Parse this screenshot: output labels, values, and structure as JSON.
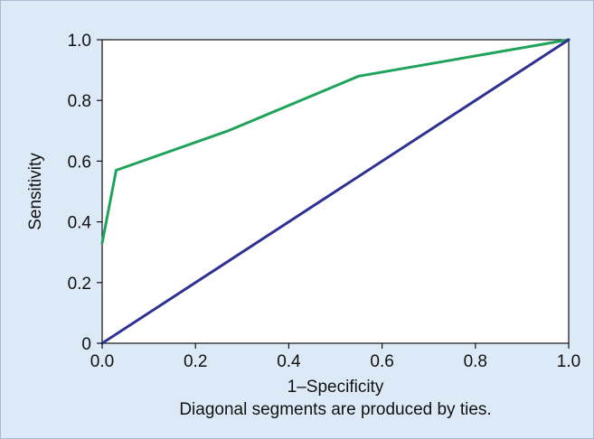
{
  "chart_data": {
    "type": "line",
    "title": "",
    "xlabel": "1–Specificity",
    "ylabel": "Sensitivity",
    "xlim": [
      0,
      1
    ],
    "ylim": [
      0,
      1
    ],
    "x_ticks": [
      "0.0",
      "0.2",
      "0.4",
      "0.6",
      "0.8",
      "1.0"
    ],
    "y_ticks": [
      "0",
      "0.2",
      "0.4",
      "0.6",
      "0.8",
      "1.0"
    ],
    "grid": false,
    "legend": "none",
    "annotation": "Diagonal segments are produced by ties.",
    "series": [
      {
        "color": "#1fa35a",
        "points": [
          [
            0.0,
            0.33
          ],
          [
            0.03,
            0.57
          ],
          [
            0.27,
            0.7
          ],
          [
            0.55,
            0.88
          ],
          [
            1.0,
            1.0
          ]
        ]
      },
      {
        "color": "#2e3192",
        "points": [
          [
            0.0,
            0.0
          ],
          [
            1.0,
            1.0
          ]
        ]
      }
    ]
  }
}
